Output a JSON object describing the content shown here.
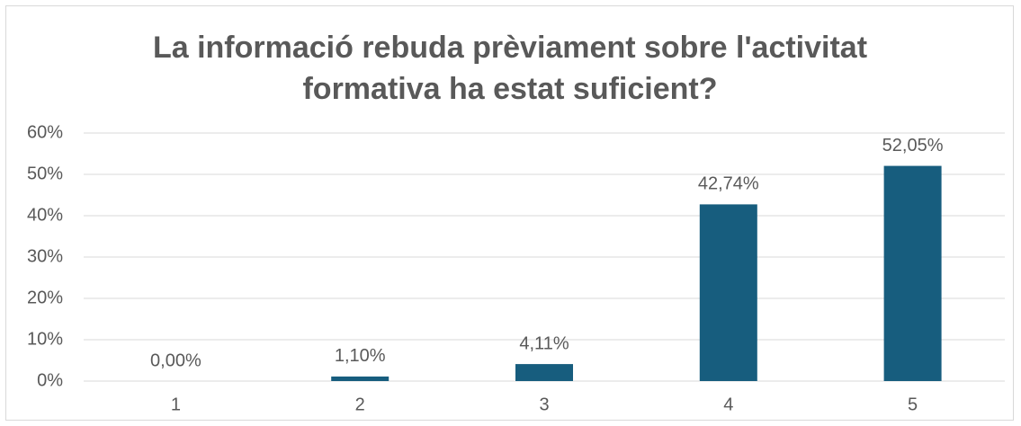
{
  "chart_data": {
    "type": "bar",
    "title": "La informació rebuda prèviament sobre l'activitat formativa ha estat suficient?",
    "categories": [
      "1",
      "2",
      "3",
      "4",
      "5"
    ],
    "values": [
      0,
      1.1,
      4.11,
      42.74,
      52.05
    ],
    "value_labels": [
      "0,00%",
      "1,10%",
      "4,11%",
      "42,74%",
      "52,05%"
    ],
    "color": "#175d7e",
    "ylim": [
      0,
      60
    ],
    "yticks": [
      {
        "value": 0,
        "label": "0%"
      },
      {
        "value": 10,
        "label": "10%"
      },
      {
        "value": 20,
        "label": "20%"
      },
      {
        "value": 30,
        "label": "30%"
      },
      {
        "value": 40,
        "label": "40%"
      },
      {
        "value": 50,
        "label": "50%"
      },
      {
        "value": 60,
        "label": "60%"
      }
    ],
    "grid": true
  }
}
